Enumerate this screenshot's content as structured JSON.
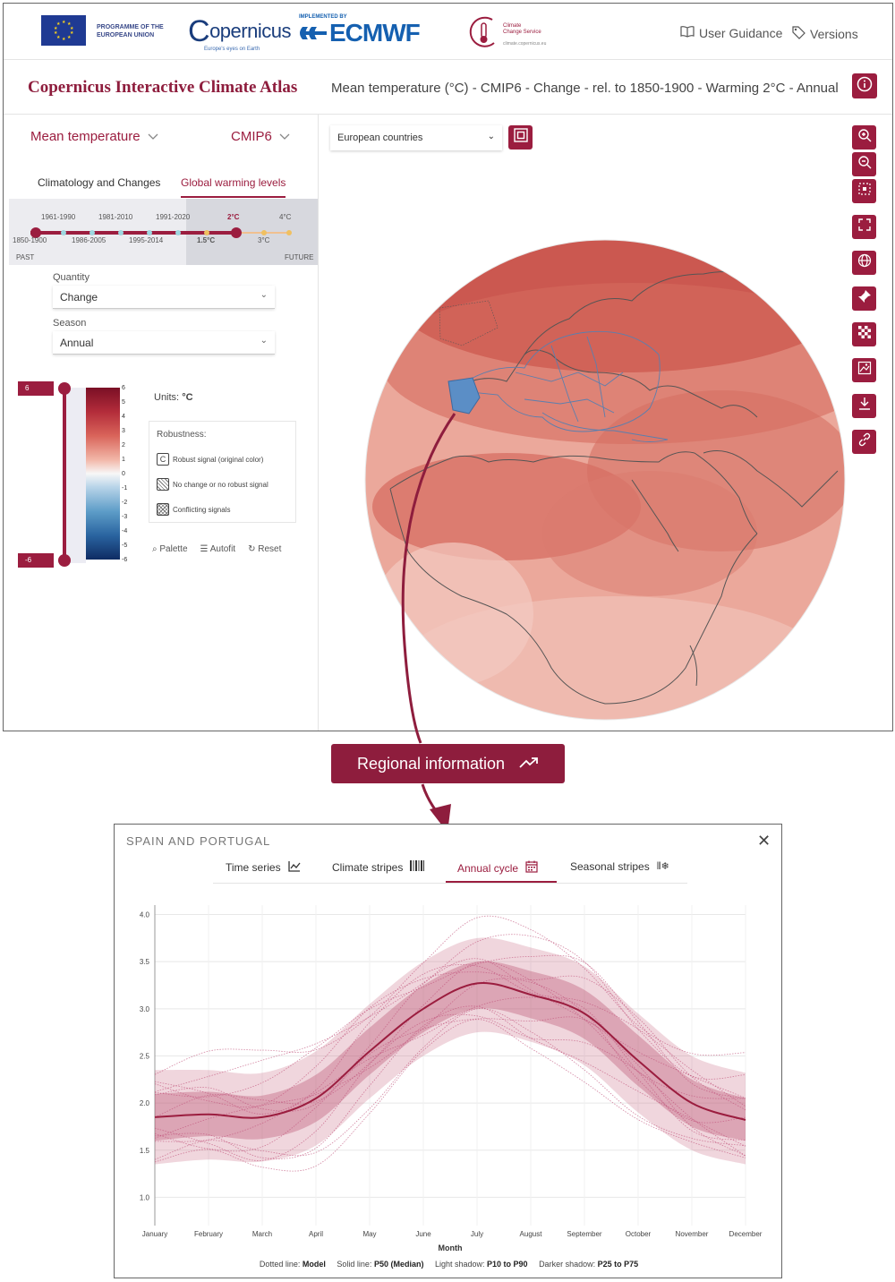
{
  "header": {
    "eu_text_line1": "PROGRAMME OF THE",
    "eu_text_line2": "EUROPEAN UNION",
    "copernicus_word": "opernicus",
    "copernicus_tagline": "Europe's eyes on Earth",
    "ecmwf_impl": "IMPLEMENTED BY",
    "ecmwf_word": "ECMWF",
    "c3s_line1": "Climate",
    "c3s_line2": "Change Service",
    "c3s_url": "climate.copernicus.eu",
    "user_guidance": "User Guidance",
    "versions": "Versions"
  },
  "titlebar": {
    "app_title": "Copernicus Interactive Climate Atlas",
    "breadcrumb": "Mean temperature (°C) - CMIP6 - Change - rel. to 1850-1900 - Warming 2°C - Annual"
  },
  "left": {
    "variable": "Mean temperature",
    "dataset": "CMIP6",
    "tabs": [
      "Climatology and Changes",
      "Global warming levels"
    ],
    "timeline_top": [
      "1961-1990",
      "1981-2010",
      "1991-2020",
      "2°C",
      "4°C"
    ],
    "timeline_bottom": [
      "1850-1900",
      "1986-2005",
      "1995-2014",
      "1.5°C",
      "3°C"
    ],
    "past": "PAST",
    "future": "FUTURE",
    "quantity_label": "Quantity",
    "quantity_value": "Change",
    "season_label": "Season",
    "season_value": "Annual",
    "legend_max": "6",
    "legend_min": "-6",
    "legend_ticks": [
      "6",
      "5",
      "4",
      "3",
      "2",
      "1",
      "0",
      "-1",
      "-2",
      "-3",
      "-4",
      "-5",
      "-6"
    ],
    "units_label": "Units: ",
    "units_value": "°C",
    "robustness_title": "Robustness:",
    "robust_items": [
      "Robust signal (original color)",
      "No change or no robust signal",
      "Conflicting signals"
    ],
    "palette": "Palette",
    "autofit": "Autofit",
    "reset": "Reset"
  },
  "map": {
    "region_select": "European countries"
  },
  "callout": "Regional information",
  "region": {
    "title": "SPAIN AND PORTUGAL",
    "tabs": [
      "Time series",
      "Climate stripes",
      "Annual cycle",
      "Seasonal stripes"
    ],
    "active_tab": "Annual cycle",
    "footnote": {
      "dotted_k": "Dotted line: ",
      "dotted_v": "Model",
      "solid_k": "Solid line: ",
      "solid_v": "P50 (Median)",
      "light_k": "Light shadow: ",
      "light_v": "P10 to P90",
      "dark_k": "Darker shadow: ",
      "dark_v": "P25 to P75"
    }
  },
  "chart_data": {
    "type": "line",
    "xlabel": "Month",
    "ylabel": "",
    "categories": [
      "January",
      "February",
      "March",
      "April",
      "May",
      "June",
      "July",
      "August",
      "September",
      "October",
      "November",
      "December"
    ],
    "ylim": [
      0.7,
      4.1
    ],
    "yticks": [
      1.0,
      1.5,
      2.0,
      2.5,
      3.0,
      3.5,
      4.0
    ],
    "grid": true,
    "median_color": "#9b1d3f",
    "series": [
      {
        "name": "P50 (Median)",
        "values": [
          1.85,
          1.88,
          1.85,
          2.05,
          2.55,
          3.0,
          3.27,
          3.15,
          2.95,
          2.45,
          2.0,
          1.82
        ]
      },
      {
        "name": "P10 to P90",
        "lower": [
          1.35,
          1.4,
          1.38,
          1.55,
          2.05,
          2.5,
          2.75,
          2.65,
          2.4,
          1.9,
          1.5,
          1.35
        ],
        "upper": [
          2.35,
          2.35,
          2.32,
          2.55,
          3.05,
          3.5,
          3.75,
          3.65,
          3.45,
          2.95,
          2.5,
          2.32
        ]
      },
      {
        "name": "P25 to P75",
        "lower": [
          1.6,
          1.65,
          1.62,
          1.8,
          2.3,
          2.75,
          3.0,
          2.9,
          2.68,
          2.18,
          1.75,
          1.6
        ],
        "upper": [
          2.1,
          2.12,
          2.08,
          2.3,
          2.8,
          3.25,
          3.5,
          3.4,
          3.2,
          2.72,
          2.25,
          2.05
        ]
      }
    ]
  }
}
